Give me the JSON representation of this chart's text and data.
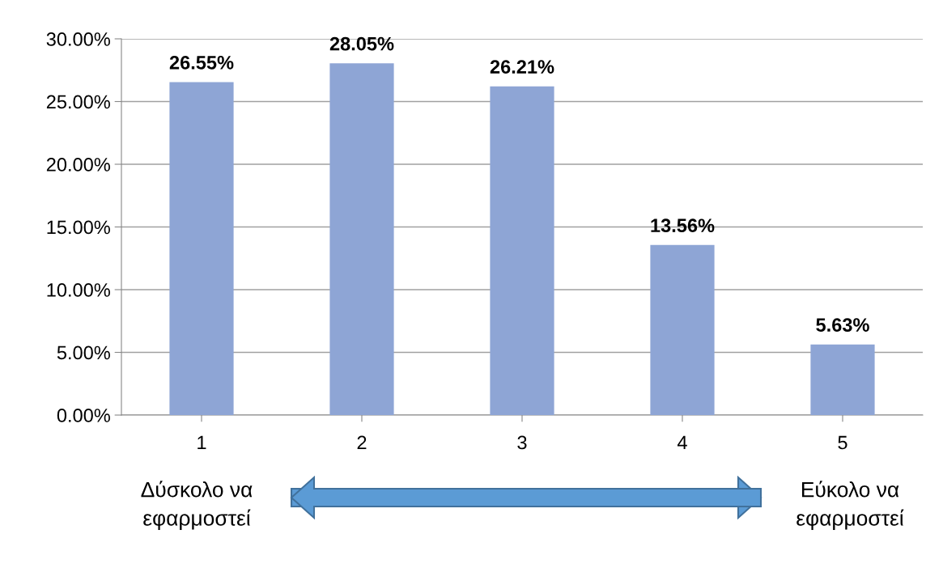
{
  "chart_data": {
    "type": "bar",
    "categories": [
      "1",
      "2",
      "3",
      "4",
      "5"
    ],
    "values": [
      26.55,
      28.05,
      26.21,
      13.56,
      5.63
    ],
    "value_labels": [
      "26.55%",
      "28.05%",
      "26.21%",
      "13.56%",
      "5.63%"
    ],
    "color": "#8ea5d5",
    "ylim": [
      0,
      30
    ],
    "yticks": [
      {
        "value": 0,
        "label": "0.00%"
      },
      {
        "value": 5,
        "label": "5.00%"
      },
      {
        "value": 10,
        "label": "10.00%"
      },
      {
        "value": 15,
        "label": "15.00%"
      },
      {
        "value": 20,
        "label": "20.00%"
      },
      {
        "value": 25,
        "label": "25.00%"
      },
      {
        "value": 30,
        "label": "30.00%"
      }
    ],
    "grid": "y",
    "annotations": [
      "Δύσκολο να\nεφαρμοστεί",
      "Εύκολο να\nεφαρμοστεί"
    ]
  }
}
